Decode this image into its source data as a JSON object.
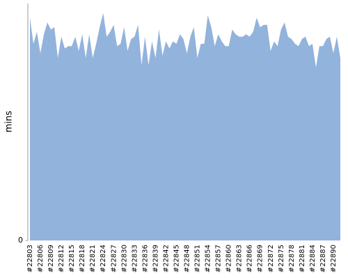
{
  "chart_data": {
    "type": "area",
    "y_label": "mins",
    "color": "#92b3dc",
    "categories": [
      "#22803",
      null,
      null,
      "#22806",
      null,
      null,
      "#22809",
      null,
      null,
      "#22812",
      null,
      null,
      "#22815",
      null,
      null,
      "#22818",
      null,
      null,
      "#22821",
      null,
      null,
      "#22824",
      null,
      null,
      "#22827",
      null,
      null,
      "#22830",
      null,
      null,
      "#22833",
      null,
      null,
      "#22836",
      null,
      null,
      "#22839",
      null,
      null,
      "#22842",
      null,
      null,
      "#22845",
      null,
      null,
      "#22848",
      null,
      null,
      "#22851",
      null,
      null,
      "#22854",
      null,
      null,
      "#22857",
      null,
      null,
      "#22860",
      null,
      null,
      "#22863",
      null,
      null,
      "#22866",
      null,
      null,
      "#22869",
      null,
      null,
      "#22872",
      null,
      null,
      "#22875",
      null,
      null,
      "#22878",
      null,
      null,
      "#22881",
      null,
      null,
      "#22884",
      null,
      null,
      "#22887",
      null,
      null,
      "#22890",
      null,
      null
    ],
    "values": [
      94,
      83,
      88,
      79,
      87,
      92,
      89,
      90,
      77,
      86,
      81,
      82,
      82,
      86,
      80,
      87,
      77,
      87,
      77,
      83,
      90,
      96,
      86,
      88,
      91,
      82,
      83,
      90,
      80,
      85,
      86,
      91,
      74,
      86,
      74,
      84,
      77,
      89,
      78,
      84,
      81,
      84,
      83,
      87,
      85,
      79,
      86,
      90,
      77,
      83,
      83,
      95,
      90,
      82,
      87,
      84,
      82,
      82,
      89,
      87,
      86,
      86,
      87,
      86,
      88,
      94,
      90,
      91,
      91,
      80,
      84,
      82,
      89,
      92,
      86,
      85,
      83,
      82,
      85,
      86,
      82,
      83,
      73,
      82,
      82,
      85,
      86,
      79,
      86,
      77
    ],
    "ylim": [
      0,
      100
    ],
    "yticks": [
      0
    ]
  }
}
